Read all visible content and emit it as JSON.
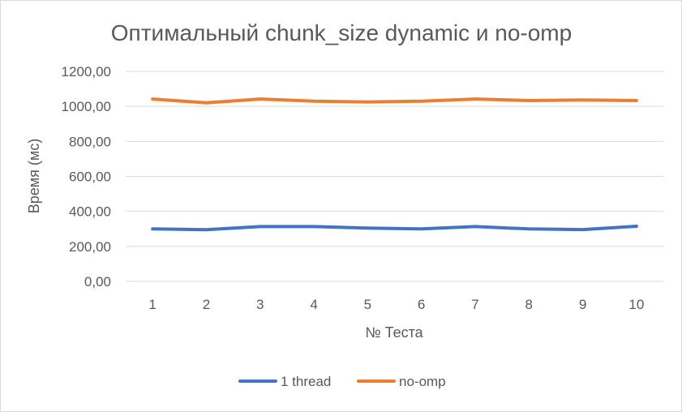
{
  "chart_data": {
    "type": "line",
    "title": "Оптимальный chunk_size dynamic и no-omp",
    "xlabel": "№ Теста",
    "ylabel": "Время (мс)",
    "categories": [
      "1",
      "2",
      "3",
      "4",
      "5",
      "6",
      "7",
      "8",
      "9",
      "10"
    ],
    "ylim": [
      0,
      1200
    ],
    "yticks": [
      0,
      200,
      400,
      600,
      800,
      1000,
      1200
    ],
    "ytick_labels": [
      "0,00",
      "200,00",
      "400,00",
      "600,00",
      "800,00",
      "1000,00",
      "1200,00"
    ],
    "grid": true,
    "legend_position": "bottom",
    "series": [
      {
        "name": "1 thread",
        "color": "#4472C4",
        "values": [
          300,
          295,
          313,
          313,
          305,
          300,
          313,
          300,
          296,
          315
        ]
      },
      {
        "name": "no-omp",
        "color": "#ED7D31",
        "values": [
          1042,
          1020,
          1042,
          1030,
          1025,
          1030,
          1042,
          1033,
          1037,
          1033
        ]
      }
    ]
  },
  "colors": {
    "gridline": "#d9d9d9",
    "text": "#595959",
    "border": "#d9d9d9"
  }
}
